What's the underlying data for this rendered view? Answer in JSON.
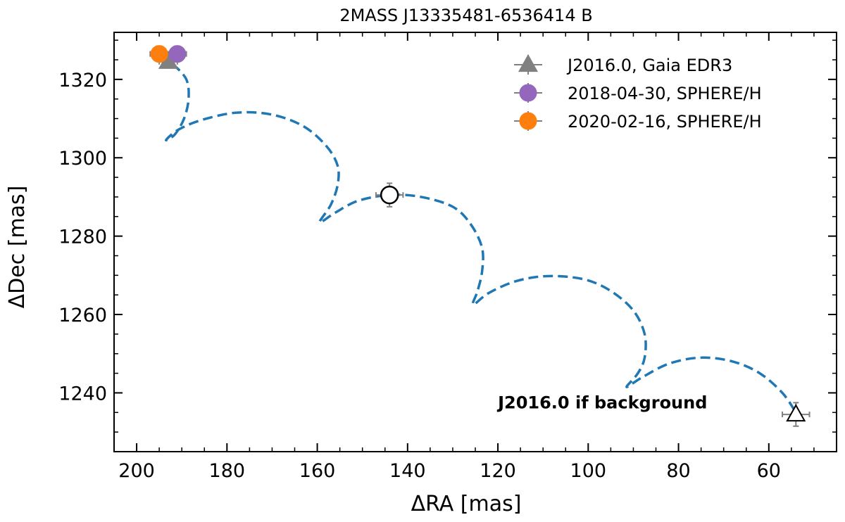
{
  "chart_data": {
    "type": "scatter",
    "title": "2MASS J13335481-6536414 B",
    "xlabel": "ΔRA [mas]",
    "ylabel": "ΔDec [mas]",
    "xlim": [
      205,
      45
    ],
    "ylim": [
      1225,
      1332
    ],
    "x_inverted": true,
    "xticks": [
      200,
      180,
      160,
      140,
      120,
      100,
      80,
      60
    ],
    "yticks": [
      1240,
      1260,
      1280,
      1300,
      1320
    ],
    "grid": false,
    "legend_position": "top-right",
    "series": [
      {
        "name": "J2016.0, Gaia EDR3",
        "marker": "triangle",
        "color": "#808080",
        "points": [
          {
            "x": 193,
            "y": 1324.5,
            "xerr": 2,
            "yerr": 1.5
          }
        ]
      },
      {
        "name": "2018-04-30, SPHERE/H",
        "marker": "circle",
        "color": "#9467bd",
        "points": [
          {
            "x": 191,
            "y": 1326.5,
            "xerr": 2,
            "yerr": 2
          }
        ]
      },
      {
        "name": "2020-02-16, SPHERE/H",
        "marker": "circle",
        "color": "#ff7f0e",
        "points": [
          {
            "x": 195,
            "y": 1326.5,
            "xerr": 2,
            "yerr": 2
          }
        ]
      }
    ],
    "background_track": {
      "color": "#1f77b4",
      "style": "dashed",
      "points": [
        [
          192,
          1324
        ],
        [
          189,
          1320
        ],
        [
          188.5,
          1315
        ],
        [
          189.5,
          1310
        ],
        [
          191.5,
          1306
        ],
        [
          193.5,
          1304.5
        ],
        [
          191,
          1307
        ],
        [
          186,
          1309.5
        ],
        [
          178,
          1311.5
        ],
        [
          170,
          1311
        ],
        [
          163,
          1308
        ],
        [
          158,
          1303
        ],
        [
          155.5,
          1298
        ],
        [
          155.5,
          1293
        ],
        [
          157,
          1288
        ],
        [
          159.5,
          1283.5
        ],
        [
          156,
          1286
        ],
        [
          151,
          1289
        ],
        [
          144,
          1290.5
        ],
        [
          137,
          1290
        ],
        [
          130,
          1287.5
        ],
        [
          126,
          1283
        ],
        [
          123.5,
          1277
        ],
        [
          123.5,
          1271
        ],
        [
          124.5,
          1266
        ],
        [
          125.5,
          1262.5
        ],
        [
          122,
          1265.5
        ],
        [
          116,
          1268.5
        ],
        [
          109,
          1269.8
        ],
        [
          101,
          1269
        ],
        [
          95,
          1266
        ],
        [
          90,
          1261
        ],
        [
          87.5,
          1255
        ],
        [
          87.5,
          1249
        ],
        [
          89,
          1245
        ],
        [
          91.5,
          1241.5
        ],
        [
          88,
          1244
        ],
        [
          82,
          1247.5
        ],
        [
          75,
          1249
        ],
        [
          68,
          1248
        ],
        [
          62,
          1245
        ],
        [
          57,
          1240
        ],
        [
          54,
          1235
        ]
      ]
    },
    "extra_points": [
      {
        "x": 144,
        "y": 1290.5,
        "marker": "open-circle",
        "xerr": 3,
        "yerr": 3
      },
      {
        "x": 54,
        "y": 1234.5,
        "marker": "open-triangle",
        "xerr": 3,
        "yerr": 3
      }
    ],
    "annotations": [
      {
        "text": "J2016.0 if background",
        "x": 120,
        "y": 1237.5
      }
    ]
  }
}
